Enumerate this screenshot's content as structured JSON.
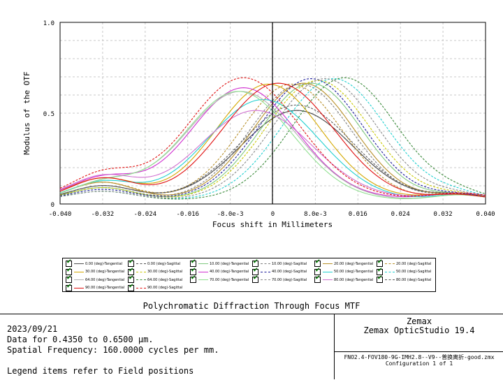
{
  "chart_data": {
    "type": "line",
    "xlabel": "Focus shift in Millimeters",
    "ylabel": "Modulus of the OTF",
    "xlim": [
      -0.04,
      0.04
    ],
    "ylim": [
      0,
      1.0
    ],
    "x_ticks": [
      {
        "value": -0.04,
        "label": "-0.040"
      },
      {
        "value": -0.032,
        "label": "-0.032"
      },
      {
        "value": -0.024,
        "label": "-0.024"
      },
      {
        "value": -0.016,
        "label": "-0.016"
      },
      {
        "value": -0.008,
        "label": "-8.0e-3"
      },
      {
        "value": 0,
        "label": "0"
      },
      {
        "value": 0.008,
        "label": "8.0e-3"
      },
      {
        "value": 0.016,
        "label": "0.016"
      },
      {
        "value": 0.024,
        "label": "0.024"
      },
      {
        "value": 0.032,
        "label": "0.032"
      },
      {
        "value": 0.04,
        "label": "0.040"
      }
    ],
    "y_ticks": [
      {
        "value": 0,
        "label": "0"
      },
      {
        "value": 0.5,
        "label": "0.5"
      },
      {
        "value": 1.0,
        "label": "1.0"
      }
    ],
    "grid": true,
    "legend_position": "below",
    "series": [
      {
        "name": "0.00 (deg)-Tangential",
        "color": "#505050",
        "dashed": false,
        "peak_x": 0.0045,
        "peak_y": 0.515,
        "width": 0.0105,
        "base": 0.02,
        "left_bump": 0.08
      },
      {
        "name": "0.00 (deg)-Sagittal",
        "color": "#505050",
        "dashed": true,
        "peak_x": 0.0045,
        "peak_y": 0.515,
        "width": 0.0105,
        "base": 0.02,
        "left_bump": 0.08
      },
      {
        "name": "10.00 (deg)-Tangential",
        "color": "#7fc97f",
        "dashed": false,
        "peak_x": 0.0072,
        "peak_y": 0.665,
        "width": 0.0095,
        "base": 0.02,
        "left_bump": 0.07
      },
      {
        "name": "10.00 (deg)-Sagittal",
        "color": "#7f7f7f",
        "dashed": true,
        "peak_x": 0.0052,
        "peak_y": 0.66,
        "width": 0.0095,
        "base": 0.02,
        "left_bump": 0.07
      },
      {
        "name": "20.00 (deg)-Tangential",
        "color": "#b8902a",
        "dashed": false,
        "peak_x": 0.0058,
        "peak_y": 0.665,
        "width": 0.0095,
        "base": 0.02,
        "left_bump": 0.1
      },
      {
        "name": "20.00 (deg)-Sagittal",
        "color": "#b8902a",
        "dashed": true,
        "peak_x": 0.0035,
        "peak_y": 0.66,
        "width": 0.0095,
        "base": 0.02,
        "left_bump": 0.1
      },
      {
        "name": "30.00 (deg)-Tangential",
        "color": "#d4a800",
        "dashed": false,
        "peak_x": -0.0008,
        "peak_y": 0.66,
        "width": 0.0098,
        "base": 0.03,
        "left_bump": 0.11
      },
      {
        "name": "30.00 (deg)-Sagittal",
        "color": "#c8c800",
        "dashed": true,
        "peak_x": 0.0085,
        "peak_y": 0.68,
        "width": 0.0098,
        "base": 0.02,
        "left_bump": 0.07
      },
      {
        "name": "40.00 (deg)-Tangential",
        "color": "#d030d0",
        "dashed": false,
        "peak_x": -0.0055,
        "peak_y": 0.64,
        "width": 0.01,
        "base": 0.03,
        "left_bump": 0.11
      },
      {
        "name": "40.00 (deg)-Sagittal",
        "color": "#1a1a9a",
        "dashed": true,
        "peak_x": 0.0072,
        "peak_y": 0.69,
        "width": 0.0098,
        "base": 0.02,
        "left_bump": 0.06
      },
      {
        "name": "50.00 (deg)-Tangential",
        "color": "#20d0d0",
        "dashed": false,
        "peak_x": -0.0018,
        "peak_y": 0.575,
        "width": 0.0105,
        "base": 0.02,
        "left_bump": 0.1
      },
      {
        "name": "50.00 (deg)-Sagittal",
        "color": "#20d0d0",
        "dashed": true,
        "peak_x": 0.0115,
        "peak_y": 0.69,
        "width": 0.0098,
        "base": 0.02,
        "left_bump": 0.05
      },
      {
        "name": "64.00 (deg)-Tangential",
        "color": "#b0b0b0",
        "dashed": false,
        "peak_x": -0.006,
        "peak_y": 0.62,
        "width": 0.0105,
        "base": 0.02,
        "left_bump": 0.09
      },
      {
        "name": "64.00 (deg)-Sagittal",
        "color": "#3a8a3a",
        "dashed": true,
        "peak_x": 0.0135,
        "peak_y": 0.695,
        "width": 0.0098,
        "base": 0.02,
        "left_bump": 0.05
      },
      {
        "name": "70.00 (deg)-Tangential",
        "color": "#90e090",
        "dashed": false,
        "peak_x": -0.0065,
        "peak_y": 0.62,
        "width": 0.0102,
        "base": 0.02,
        "left_bump": 0.09
      },
      {
        "name": "70.00 (deg)-Sagittal",
        "color": "#8a8a8a",
        "dashed": true,
        "peak_x": 0.0098,
        "peak_y": 0.69,
        "width": 0.0098,
        "base": 0.02,
        "left_bump": 0.05
      },
      {
        "name": "80.00 (deg)-Tangential",
        "color": "#d070d0",
        "dashed": false,
        "peak_x": -0.0032,
        "peak_y": 0.515,
        "width": 0.0105,
        "base": 0.03,
        "left_bump": 0.12
      },
      {
        "name": "80.00 (deg)-Sagittal",
        "color": "#5a5a5a",
        "dashed": true,
        "peak_x": 0.0045,
        "peak_y": 0.545,
        "width": 0.0105,
        "base": 0.02,
        "left_bump": 0.08
      },
      {
        "name": "90.00 (deg)-Tangential",
        "color": "#e01010",
        "dashed": false,
        "peak_x": 0.001,
        "peak_y": 0.665,
        "width": 0.0105,
        "base": 0.02,
        "left_bump": 0.12
      },
      {
        "name": "90.00 (deg)-Sagittal",
        "color": "#e01010",
        "dashed": true,
        "peak_x": -0.0055,
        "peak_y": 0.695,
        "width": 0.0105,
        "base": 0.03,
        "left_bump": 0.13
      }
    ]
  },
  "legend": {
    "items": [
      "0.00 (deg)-Tangential",
      "0.00 (deg)-Sagittal",
      "10.00 (deg)-Tangential",
      "10.00 (deg)-Sagittal",
      "20.00 (deg)-Tangential",
      "20.00 (deg)-Sagittal",
      "30.00 (deg)-Tangential",
      "30.00 (deg)-Sagittal",
      "40.00 (deg)-Tangential",
      "40.00 (deg)-Sagittal",
      "50.00 (deg)-Tangential",
      "50.00 (deg)-Sagittal",
      "64.00 (deg)-Tangential",
      "64.00 (deg)-Sagittal",
      "70.00 (deg)-Tangential",
      "70.00 (deg)-Sagittal",
      "80.00 (deg)-Tangential",
      "80.00 (deg)-Sagittal",
      "90.00 (deg)-Tangential",
      "90.00 (deg)-Sagittal"
    ],
    "check_glyph": "✔"
  },
  "title": "Polychromatic Diffraction Through Focus MTF",
  "info": {
    "date": "2023/09/21",
    "wavelength": "Data for 0.4350 to 0.6500 µm.",
    "frequency": "Spatial Frequency: 160.0000 cycles per mm.",
    "note": "Legend items refer to Field positions"
  },
  "brand": {
    "name": "Zemax",
    "product": "Zemax OpticStudio 19.4"
  },
  "file": {
    "name": "FNO2.4-FOV180-9G-IMH2.8--V9--普换离折-good.zmx",
    "config": "Configuration 1 of 1"
  }
}
